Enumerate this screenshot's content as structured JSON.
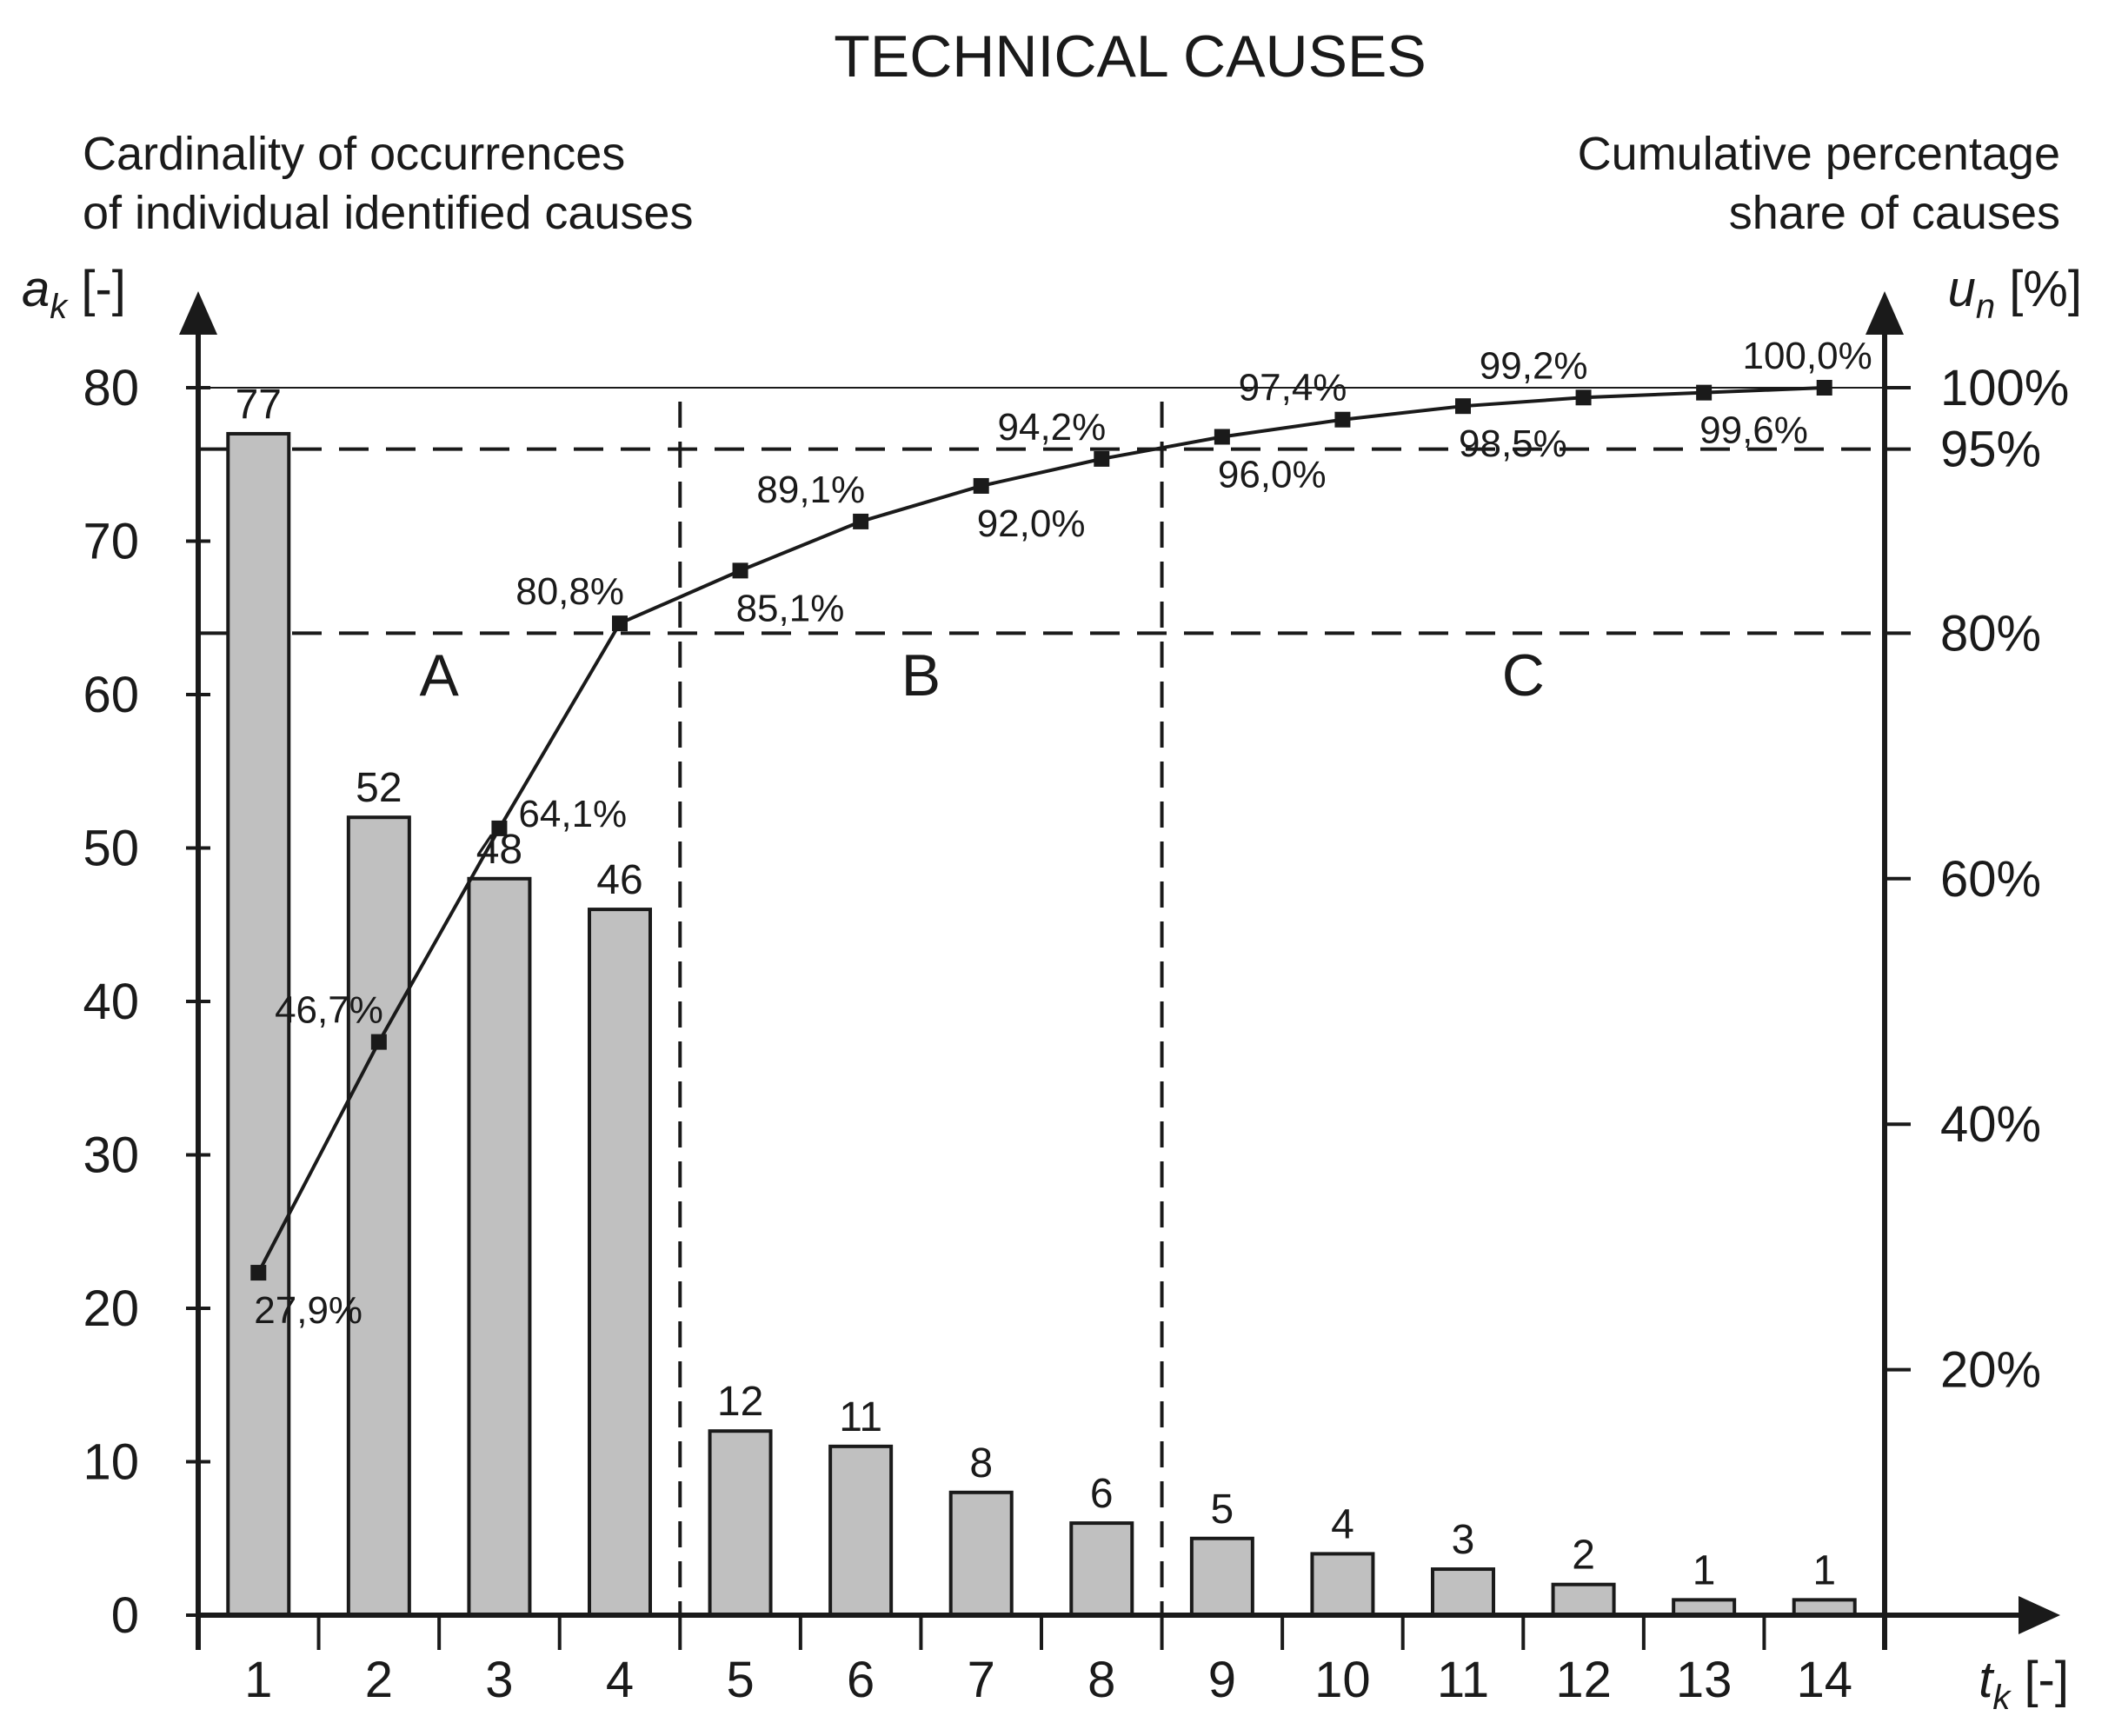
{
  "chart_data": {
    "type": "bar",
    "title": "TECHNICAL CAUSES",
    "y_left_label": [
      "Cardinality of occurrences",
      "of individual identified causes"
    ],
    "y_left_symbol": "a",
    "y_left_symbol_sub": "k",
    "y_left_symbol_unit": " [-]",
    "y_right_label": [
      "Cumulative percentage",
      "share of causes"
    ],
    "y_right_symbol": "u",
    "y_right_symbol_sub": "n",
    "y_right_symbol_unit": " [%]",
    "x_symbol": "t",
    "x_symbol_sub": "k",
    "x_symbol_unit": " [-]",
    "ylim": [
      0,
      80
    ],
    "y_ticks": [
      0,
      10,
      20,
      30,
      40,
      50,
      60,
      70,
      80
    ],
    "y_right_ticks": [
      "20%",
      "40%",
      "60%",
      "80%",
      "95%",
      "100%"
    ],
    "y_right_tick_values": [
      20,
      40,
      60,
      80,
      95,
      100
    ],
    "categories": [
      "1",
      "2",
      "3",
      "4",
      "5",
      "6",
      "7",
      "8",
      "9",
      "10",
      "11",
      "12",
      "13",
      "14"
    ],
    "series": [
      {
        "name": "Cardinality of occurrences",
        "type": "bar",
        "values": [
          77,
          52,
          48,
          46,
          12,
          11,
          8,
          6,
          5,
          4,
          3,
          2,
          1,
          1
        ],
        "labels": [
          "77",
          "52",
          "48",
          "46",
          "12",
          "11",
          "8",
          "6",
          "5",
          "4",
          "3",
          "2",
          "1",
          "1"
        ]
      },
      {
        "name": "Cumulative percentage share",
        "type": "line",
        "values": [
          27.9,
          46.7,
          64.1,
          80.8,
          85.1,
          89.1,
          92.0,
          94.2,
          96.0,
          97.4,
          98.5,
          99.2,
          99.6,
          100.0
        ],
        "labels": [
          "27,9%",
          "46,7%",
          "64,1%",
          "80,8%",
          "85,1%",
          "89,1%",
          "92,0%",
          "94,2%",
          "96,0%",
          "97,4%",
          "98,5%",
          "99,2%",
          "99,6%",
          "100,0%"
        ],
        "label_position": [
          "below",
          "above",
          "right",
          "above",
          "below",
          "above",
          "below",
          "above",
          "below",
          "above",
          "below",
          "above",
          "below",
          "above"
        ]
      }
    ],
    "thresholds": [
      80,
      95
    ],
    "zones": [
      {
        "label": "A",
        "from": 1,
        "to": 4
      },
      {
        "label": "B",
        "from": 5,
        "to": 8
      },
      {
        "label": "C",
        "from": 9,
        "to": 14
      }
    ],
    "colors": {
      "bar_fill": "#c0c0c0",
      "line": "#1a1a1a",
      "axis": "#1a1a1a"
    }
  }
}
